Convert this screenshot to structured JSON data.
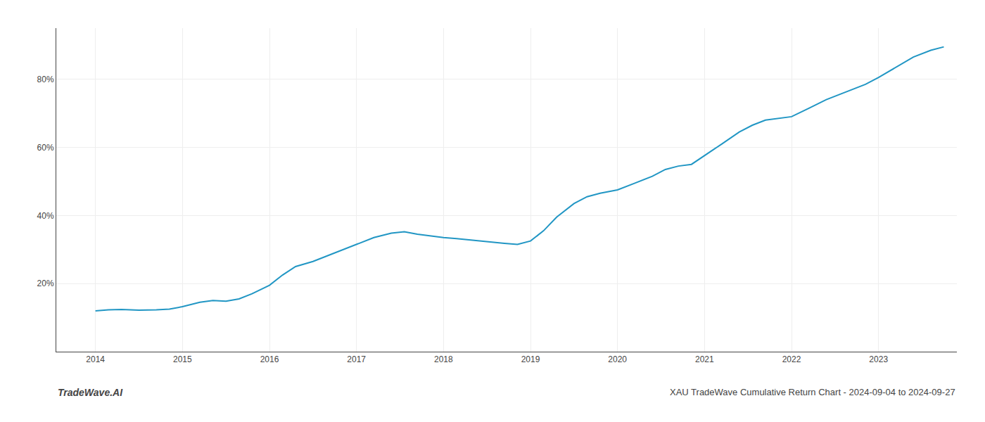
{
  "chart_data": {
    "type": "line",
    "title": "XAU TradeWave Cumulative Return Chart - 2024-09-04 to 2024-09-27",
    "annotations": [
      "TradeWave.AI"
    ],
    "color": "#2196c4",
    "x": [
      2014.0,
      2014.15,
      2014.3,
      2014.5,
      2014.7,
      2014.85,
      2015.0,
      2015.2,
      2015.35,
      2015.5,
      2015.65,
      2015.8,
      2016.0,
      2016.15,
      2016.3,
      2016.5,
      2016.7,
      2016.85,
      2017.0,
      2017.2,
      2017.4,
      2017.55,
      2017.7,
      2017.85,
      2018.0,
      2018.15,
      2018.3,
      2018.5,
      2018.7,
      2018.85,
      2019.0,
      2019.15,
      2019.3,
      2019.5,
      2019.65,
      2019.8,
      2020.0,
      2020.2,
      2020.4,
      2020.55,
      2020.7,
      2020.85,
      2021.0,
      2021.2,
      2021.4,
      2021.55,
      2021.7,
      2021.85,
      2022.0,
      2022.2,
      2022.4,
      2022.55,
      2022.7,
      2022.85,
      2023.0,
      2023.2,
      2023.4,
      2023.6,
      2023.75
    ],
    "values": [
      12.0,
      12.3,
      12.4,
      12.2,
      12.3,
      12.5,
      13.2,
      14.5,
      15.0,
      14.8,
      15.5,
      17.0,
      19.5,
      22.5,
      25.0,
      26.5,
      28.5,
      30.0,
      31.5,
      33.5,
      34.8,
      35.2,
      34.5,
      34.0,
      33.5,
      33.2,
      32.8,
      32.2,
      31.8,
      31.5,
      32.5,
      35.5,
      39.5,
      43.5,
      45.5,
      46.5,
      47.5,
      49.5,
      51.5,
      53.5,
      54.5,
      55.0,
      57.5,
      61.0,
      64.5,
      66.5,
      68.0,
      68.5,
      69.0,
      71.5,
      74.0,
      75.5,
      77.0,
      78.5,
      80.5,
      83.5,
      86.5,
      88.5,
      89.5
    ],
    "xlim": [
      2013.55,
      2023.9
    ],
    "xticks": [
      2014,
      2015,
      2016,
      2017,
      2018,
      2019,
      2020,
      2021,
      2022,
      2023
    ],
    "ylim": [
      0,
      95
    ],
    "yticks": [
      {
        "value": 20,
        "label": "20%"
      },
      {
        "value": 40,
        "label": "40%"
      },
      {
        "value": 60,
        "label": "60%"
      },
      {
        "value": 80,
        "label": "80%"
      }
    ],
    "grid": true
  }
}
